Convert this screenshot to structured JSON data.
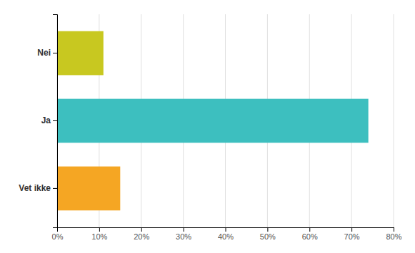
{
  "chart_data": {
    "type": "bar",
    "orientation": "horizontal",
    "categories": [
      "Nei",
      "Ja",
      "Vet ikke"
    ],
    "values": [
      11,
      74,
      15
    ],
    "colors": [
      "#c8c820",
      "#3dbfbf",
      "#f5a623"
    ],
    "xlim": [
      0,
      80
    ],
    "xticks": [
      {
        "value": 0,
        "label": "0%"
      },
      {
        "value": 10,
        "label": "10%"
      },
      {
        "value": 20,
        "label": "20%"
      },
      {
        "value": 30,
        "label": "30%"
      },
      {
        "value": 40,
        "label": "40%"
      },
      {
        "value": 50,
        "label": "50%"
      },
      {
        "value": 60,
        "label": "60%"
      },
      {
        "value": 70,
        "label": "70%"
      },
      {
        "value": 80,
        "label": "80%"
      }
    ],
    "grid": true
  }
}
